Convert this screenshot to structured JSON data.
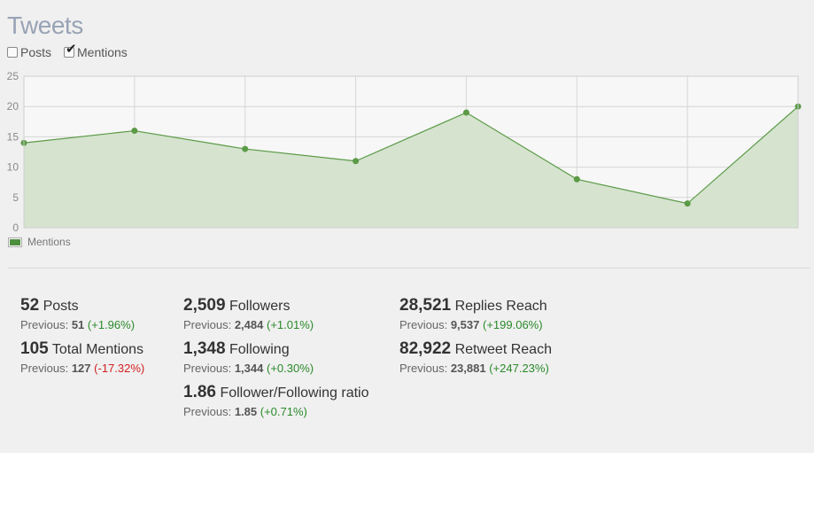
{
  "title": "Tweets",
  "toggles": [
    {
      "label": "Posts",
      "checked": false
    },
    {
      "label": "Mentions",
      "checked": true
    }
  ],
  "chart_data": {
    "type": "area",
    "x": [
      1,
      2,
      3,
      4,
      5,
      6,
      7,
      8
    ],
    "series": [
      {
        "name": "Mentions",
        "values": [
          14,
          16,
          13,
          11,
          19,
          8,
          4,
          20
        ],
        "color": "#5b9a46",
        "fill": "#d5e3cf"
      }
    ],
    "ylim": [
      0,
      25
    ],
    "yticks": [
      "0",
      "5",
      "10",
      "15",
      "20",
      "25"
    ],
    "grid": true,
    "legend": "bottom-left"
  },
  "legend": {
    "label": "Mentions"
  },
  "stats": {
    "posts": {
      "value": "52",
      "label": "Posts",
      "prev_label": "Previous:",
      "prev_value": "51",
      "change": "(+1.96%)"
    },
    "mentions": {
      "value": "105",
      "label": "Total Mentions",
      "prev_label": "Previous:",
      "prev_value": "127",
      "change": "(-17.32%)"
    },
    "followers": {
      "value": "2,509",
      "label": "Followers",
      "prev_label": "Previous:",
      "prev_value": "2,484",
      "change": "(+1.01%)"
    },
    "following": {
      "value": "1,348",
      "label": "Following",
      "prev_label": "Previous:",
      "prev_value": "1,344",
      "change": "(+0.30%)"
    },
    "ratio": {
      "value": "1.86",
      "label": "Follower/Following ratio",
      "prev_label": "Previous:",
      "prev_value": "1.85",
      "change": "(+0.71%)"
    },
    "replies_reach": {
      "value": "28,521",
      "label": "Replies Reach",
      "prev_label": "Previous:",
      "prev_value": "9,537",
      "change": "(+199.06%)"
    },
    "retweet_reach": {
      "value": "82,922",
      "label": "Retweet Reach",
      "prev_label": "Previous:",
      "prev_value": "23,881",
      "change": "(+247.23%)"
    }
  },
  "colors": {
    "positive": "#2a8a2a",
    "negative": "#d42020",
    "title": "#98a3b5"
  }
}
